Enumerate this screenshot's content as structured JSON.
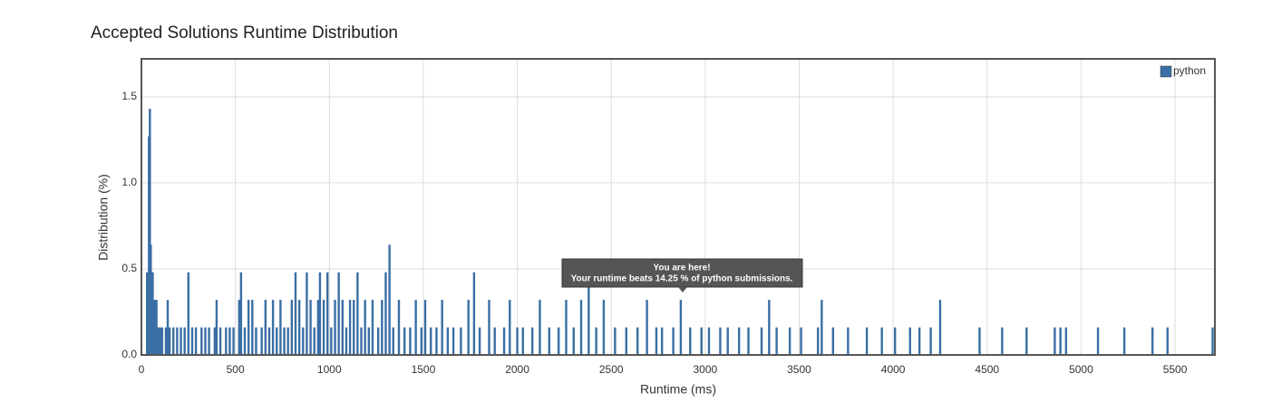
{
  "chart_data": {
    "type": "histogram",
    "title": "Accepted Solutions Runtime Distribution",
    "x_label": "Runtime (ms)",
    "y_label": "Distribution (%)",
    "xlim": [
      0,
      5712
    ],
    "ylim": [
      0,
      1.72
    ],
    "xticks": [
      0,
      500,
      1000,
      1500,
      2000,
      2500,
      3000,
      3500,
      4000,
      4500,
      5000,
      5500
    ],
    "yticks": [
      {
        "value": 0,
        "label": "0.0"
      },
      0.5,
      {
        "value": 1,
        "label": "1.0"
      },
      1.5
    ],
    "grid": true,
    "legend": "top-right",
    "annotation": {
      "title": "You are here!",
      "text": "Your runtime beats 14.25 % of python submissions."
    },
    "series": [
      {
        "name": "python",
        "color": "#3a6ea5",
        "x": [
          30,
          40,
          45,
          50,
          55,
          60,
          70,
          80,
          90,
          100,
          110,
          130,
          140,
          150,
          170,
          190,
          210,
          230,
          250,
          270,
          290,
          320,
          340,
          360,
          390,
          400,
          420,
          450,
          470,
          490,
          520,
          530,
          550,
          570,
          590,
          610,
          640,
          660,
          680,
          700,
          720,
          740,
          760,
          780,
          800,
          820,
          840,
          860,
          880,
          900,
          920,
          940,
          950,
          970,
          990,
          1010,
          1030,
          1050,
          1070,
          1090,
          1110,
          1130,
          1150,
          1170,
          1190,
          1210,
          1230,
          1260,
          1280,
          1300,
          1320,
          1340,
          1370,
          1400,
          1430,
          1460,
          1490,
          1510,
          1540,
          1570,
          1600,
          1630,
          1660,
          1700,
          1740,
          1770,
          1800,
          1850,
          1880,
          1930,
          1960,
          2000,
          2030,
          2080,
          2120,
          2170,
          2220,
          2260,
          2300,
          2340,
          2380,
          2420,
          2460,
          2520,
          2580,
          2640,
          2690,
          2740,
          2770,
          2830,
          2870,
          2920,
          2980,
          3020,
          3080,
          3120,
          3180,
          3230,
          3300,
          3340,
          3380,
          3450,
          3510,
          3600,
          3620,
          3680,
          3760,
          3860,
          3940,
          4010,
          4090,
          4140,
          4200,
          4250,
          4460,
          4580,
          4710,
          4860,
          4890,
          4920,
          5090,
          5230,
          5380,
          5460,
          5700
        ],
        "values": [
          0.48,
          1.27,
          1.43,
          0.64,
          0.48,
          0.48,
          0.32,
          0.32,
          0.16,
          0.16,
          0.16,
          0.16,
          0.32,
          0.16,
          0.16,
          0.16,
          0.16,
          0.16,
          0.48,
          0.16,
          0.16,
          0.16,
          0.16,
          0.16,
          0.16,
          0.32,
          0.16,
          0.16,
          0.16,
          0.16,
          0.32,
          0.48,
          0.16,
          0.32,
          0.32,
          0.16,
          0.16,
          0.32,
          0.16,
          0.32,
          0.16,
          0.32,
          0.16,
          0.16,
          0.32,
          0.48,
          0.32,
          0.16,
          0.48,
          0.32,
          0.16,
          0.32,
          0.48,
          0.32,
          0.48,
          0.16,
          0.32,
          0.48,
          0.32,
          0.16,
          0.32,
          0.32,
          0.48,
          0.16,
          0.32,
          0.16,
          0.32,
          0.16,
          0.32,
          0.48,
          0.64,
          0.16,
          0.32,
          0.16,
          0.16,
          0.32,
          0.16,
          0.32,
          0.16,
          0.16,
          0.32,
          0.16,
          0.16,
          0.16,
          0.32,
          0.48,
          0.16,
          0.32,
          0.16,
          0.16,
          0.32,
          0.16,
          0.16,
          0.16,
          0.32,
          0.16,
          0.16,
          0.32,
          0.16,
          0.32,
          0.48,
          0.16,
          0.32,
          0.16,
          0.16,
          0.16,
          0.32,
          0.16,
          0.16,
          0.16,
          0.32,
          0.16,
          0.16,
          0.16,
          0.16,
          0.16,
          0.16,
          0.16,
          0.16,
          0.32,
          0.16,
          0.16,
          0.16,
          0.16,
          0.32,
          0.16,
          0.16,
          0.16,
          0.16,
          0.16,
          0.16,
          0.16,
          0.16,
          0.32,
          0.16,
          0.16,
          0.16,
          0.16,
          0.16,
          0.16,
          0.16,
          0.16,
          0.16,
          0.16,
          0.16
        ]
      }
    ]
  }
}
